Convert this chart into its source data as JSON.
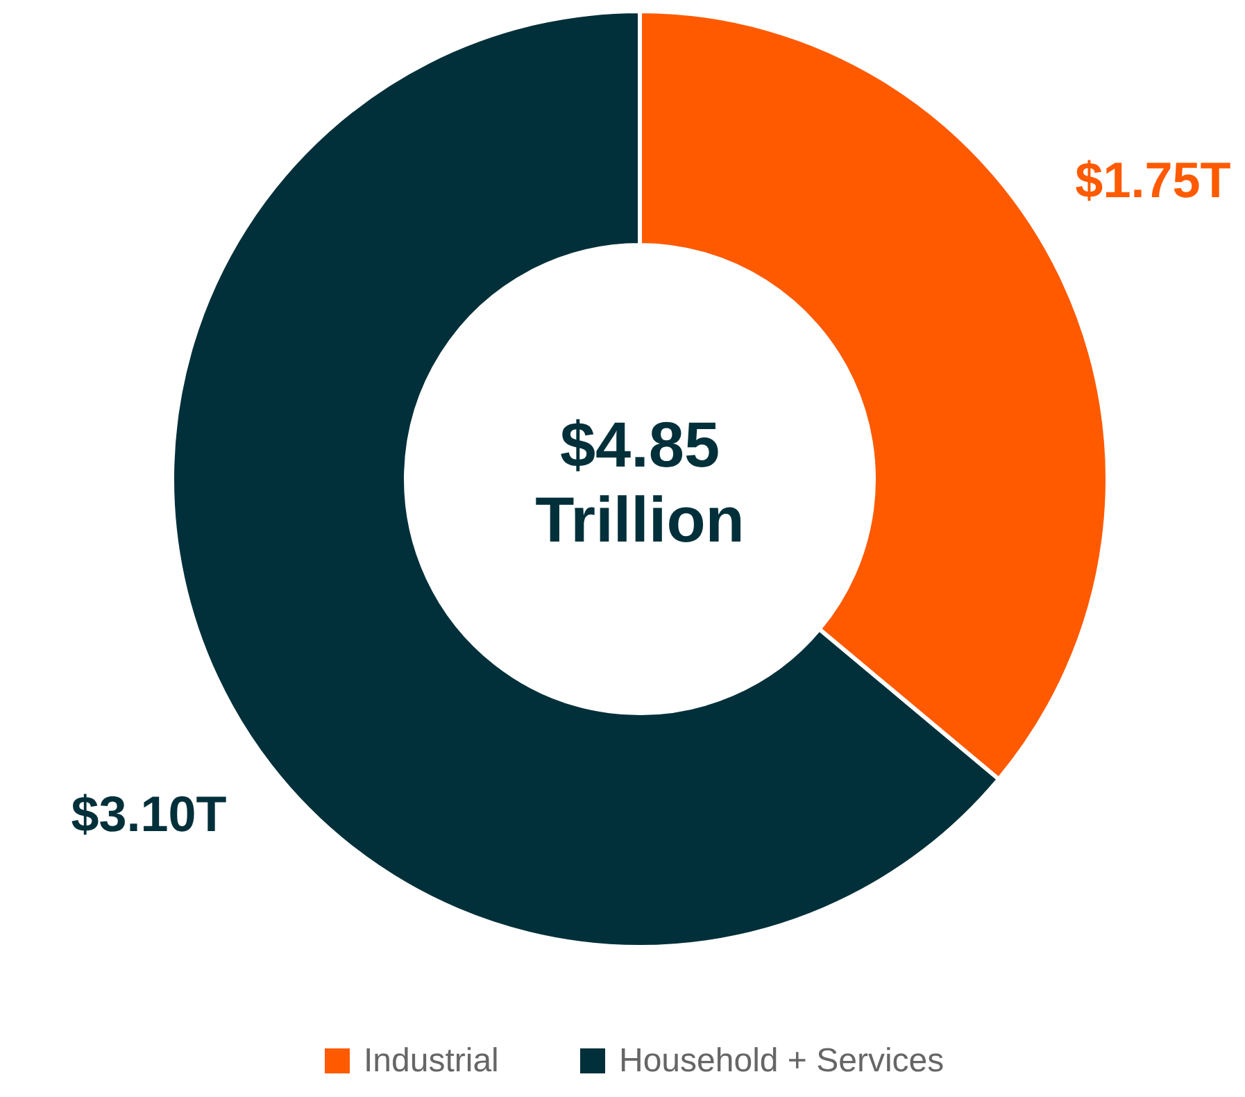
{
  "chart_data": {
    "type": "donut",
    "categories": [
      "Industrial",
      "Household + Services"
    ],
    "values": [
      1.75,
      3.1
    ],
    "colors": [
      "#ff5a00",
      "#02303a"
    ],
    "value_labels": [
      "$1.75T",
      "$3.10T"
    ],
    "annotations": [
      "$4.85 Trillion"
    ],
    "legend": "bottom"
  }
}
